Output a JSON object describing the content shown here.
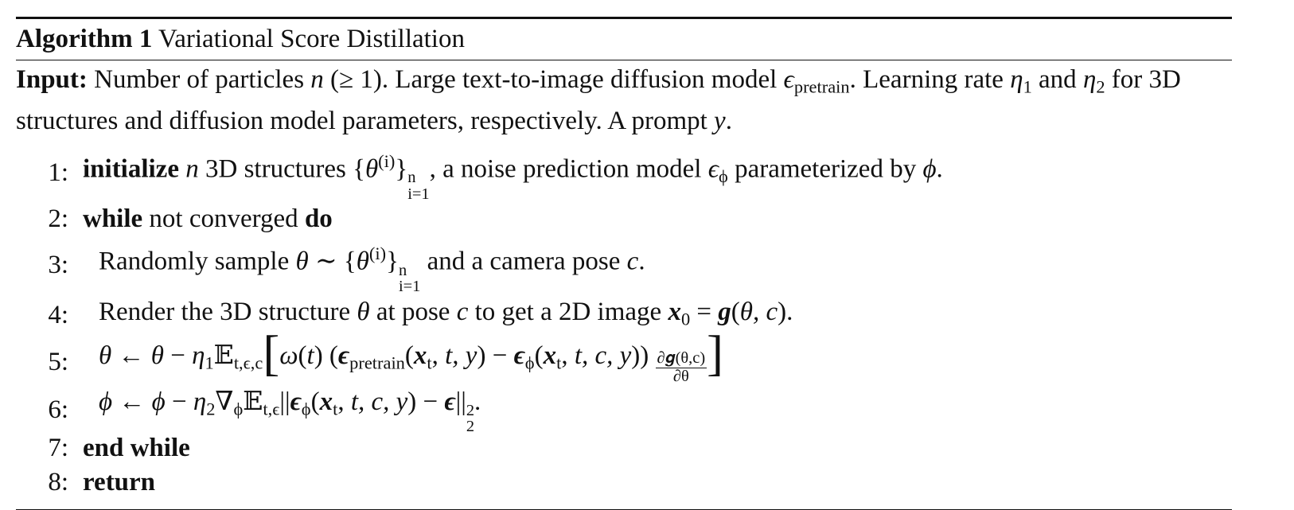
{
  "title": [
    {
      "t": "Algorithm 1",
      "f": "b"
    },
    {
      "t": " Variational Score Distillation"
    }
  ],
  "input": [
    {
      "t": "Input:",
      "f": "b"
    },
    {
      "t": " Number of particles "
    },
    {
      "t": "n",
      "f": "i"
    },
    {
      "t": " (≥ 1). Large text-to-image diffusion model "
    },
    {
      "t": "ϵ",
      "f": "i"
    },
    {
      "t": "pretrain",
      "f": "sub"
    },
    {
      "t": ". Learning rate "
    },
    {
      "t": "η",
      "f": "i"
    },
    {
      "t": "1",
      "f": "sub"
    },
    {
      "t": " and "
    },
    {
      "t": "η",
      "f": "i"
    },
    {
      "t": "2",
      "f": "sub"
    },
    {
      "t": " for 3D structures and diffusion model parameters, respectively. A prompt "
    },
    {
      "t": "y",
      "f": "i"
    },
    {
      "t": "."
    }
  ],
  "steps": [
    {
      "num": "1:",
      "segs": [
        {
          "t": "initialize",
          "f": "b"
        },
        {
          "t": " "
        },
        {
          "t": "n",
          "f": "i"
        },
        {
          "t": " 3D structures {"
        },
        {
          "t": "θ",
          "f": "i"
        },
        {
          "t": "(i)",
          "f": "sup"
        },
        {
          "t": "}"
        },
        {
          "sup": "n",
          "sub": "i=1"
        },
        {
          "t": ", a noise prediction model "
        },
        {
          "t": "ϵ",
          "f": "i"
        },
        {
          "t": "ϕ",
          "f": "sub"
        },
        {
          "t": " parameterized by "
        },
        {
          "t": "ϕ",
          "f": "i"
        },
        {
          "t": "."
        }
      ]
    },
    {
      "num": "2:",
      "segs": [
        {
          "t": "while",
          "f": "b"
        },
        {
          "t": " not converged "
        },
        {
          "t": "do",
          "f": "b"
        }
      ]
    },
    {
      "num": "3:",
      "segs": [
        {
          "t": "Randomly sample "
        },
        {
          "t": "θ",
          "f": "i"
        },
        {
          "t": " ∼ {"
        },
        {
          "t": "θ",
          "f": "i"
        },
        {
          "t": "(i)",
          "f": "sup"
        },
        {
          "t": "}"
        },
        {
          "sup": "n",
          "sub": "i=1"
        },
        {
          "t": " and a camera pose "
        },
        {
          "t": "c",
          "f": "i"
        },
        {
          "t": "."
        }
      ]
    },
    {
      "num": "4:",
      "segs": [
        {
          "t": "Render the 3D structure "
        },
        {
          "t": "θ",
          "f": "i"
        },
        {
          "t": " at pose "
        },
        {
          "t": "c",
          "f": "i"
        },
        {
          "t": " to get a 2D image "
        },
        {
          "t": "x",
          "f": "bi"
        },
        {
          "t": "0",
          "f": "sub"
        },
        {
          "t": " = "
        },
        {
          "t": "g",
          "f": "bi"
        },
        {
          "t": "("
        },
        {
          "t": "θ, c",
          "f": "i"
        },
        {
          "t": ")."
        }
      ]
    },
    {
      "num": "5:",
      "segs": [
        {
          "t": "θ",
          "f": "i"
        },
        {
          "t": " ← "
        },
        {
          "t": "θ",
          "f": "i"
        },
        {
          "t": " − "
        },
        {
          "t": "η",
          "f": "i"
        },
        {
          "t": "1",
          "f": "sub"
        },
        {
          "t": "𝔼"
        },
        {
          "t": "t,ϵ,c",
          "f": "sub"
        },
        {
          "t": "[",
          "f": "big"
        },
        {
          "t": "ω",
          "f": "i"
        },
        {
          "t": "("
        },
        {
          "t": "t",
          "f": "i"
        },
        {
          "t": ") ("
        },
        {
          "t": "ϵ",
          "f": "bi"
        },
        {
          "t": "pretrain",
          "f": "sub"
        },
        {
          "t": "("
        },
        {
          "t": "x",
          "f": "bi"
        },
        {
          "t": "t",
          "f": "sub"
        },
        {
          "t": ", "
        },
        {
          "t": "t, y",
          "f": "i"
        },
        {
          "t": ") − "
        },
        {
          "t": "ϵ",
          "f": "bi"
        },
        {
          "t": "ϕ",
          "f": "sub"
        },
        {
          "t": "("
        },
        {
          "t": "x",
          "f": "bi"
        },
        {
          "t": "t",
          "f": "sub"
        },
        {
          "t": ", "
        },
        {
          "t": "t, c, y",
          "f": "i"
        },
        {
          "t": ")) "
        },
        {
          "num": "∂𝒈(θ,c)",
          "den": "∂θ"
        },
        {
          "t": "]",
          "f": "big"
        }
      ]
    },
    {
      "num": "6:",
      "segs": [
        {
          "t": "ϕ",
          "f": "i"
        },
        {
          "t": " ← "
        },
        {
          "t": "ϕ",
          "f": "i"
        },
        {
          "t": " − "
        },
        {
          "t": "η",
          "f": "i"
        },
        {
          "t": "2",
          "f": "sub"
        },
        {
          "t": "∇"
        },
        {
          "t": "ϕ",
          "f": "sub"
        },
        {
          "t": "𝔼"
        },
        {
          "t": "t,ϵ",
          "f": "sub"
        },
        {
          "t": "||"
        },
        {
          "t": "ϵ",
          "f": "bi"
        },
        {
          "t": "ϕ",
          "f": "sub"
        },
        {
          "t": "("
        },
        {
          "t": "x",
          "f": "bi"
        },
        {
          "t": "t",
          "f": "sub"
        },
        {
          "t": ", "
        },
        {
          "t": "t, c, y",
          "f": "i"
        },
        {
          "t": ") − "
        },
        {
          "t": "ϵ",
          "f": "bi"
        },
        {
          "t": "||"
        },
        {
          "sup": "2",
          "sub": "2"
        },
        {
          "t": "."
        }
      ]
    },
    {
      "num": "7:",
      "segs": [
        {
          "t": "end while",
          "f": "b"
        }
      ]
    },
    {
      "num": "8:",
      "segs": [
        {
          "t": "return",
          "f": "b"
        }
      ]
    }
  ]
}
